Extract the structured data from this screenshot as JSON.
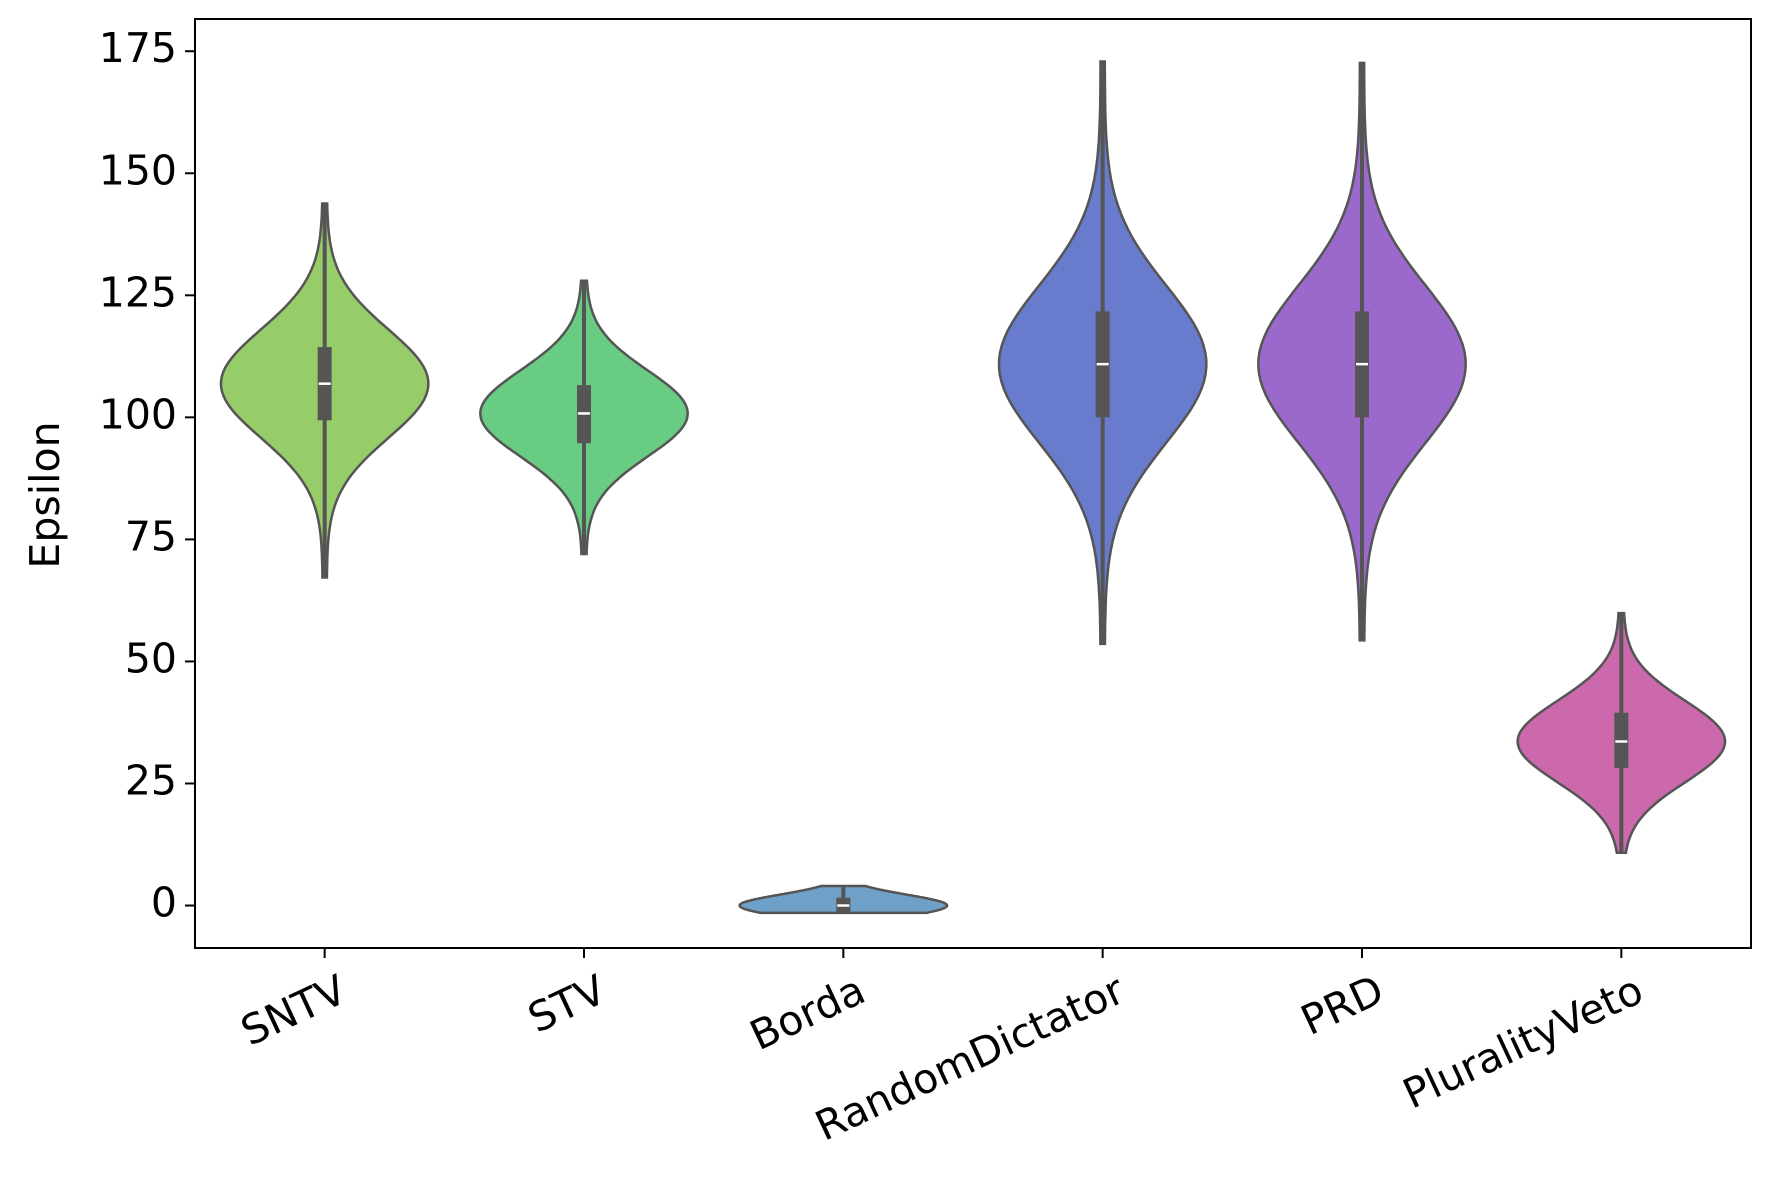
{
  "chart_data": {
    "type": "violin",
    "y_label": "Epsilon",
    "categories": [
      "SNTV",
      "STV",
      "Borda",
      "RandomDictator",
      "PRD",
      "PluralityVeto"
    ],
    "colors": [
      "#96cd68",
      "#68cc83",
      "#6ea0c8",
      "#687bcc",
      "#9b68cc",
      "#cc68ac"
    ],
    "values": [
      {
        "min": 67.2,
        "q1": 99.4,
        "median": 106.9,
        "q3": 114.4,
        "max": 143.8
      },
      {
        "min": 72,
        "q1": 94.7,
        "median": 100.8,
        "q3": 106.6,
        "max": 128
      },
      {
        "min": -1.5,
        "q1": -1.4,
        "median": 0,
        "q3": 1.6,
        "max": 4
      },
      {
        "min": 53.6,
        "q1": 100,
        "median": 110.9,
        "q3": 121.7,
        "max": 172.9
      },
      {
        "min": 54.3,
        "q1": 100,
        "median": 110.9,
        "q3": 121.7,
        "max": 172.6
      },
      {
        "min": 10.8,
        "q1": 28.2,
        "median": 33.6,
        "q3": 39.5,
        "max": 59.9
      }
    ],
    "ylim": [
      -8.7,
      181.6
    ],
    "yticks": [
      0,
      25,
      50,
      75,
      100,
      125,
      150,
      175
    ]
  }
}
